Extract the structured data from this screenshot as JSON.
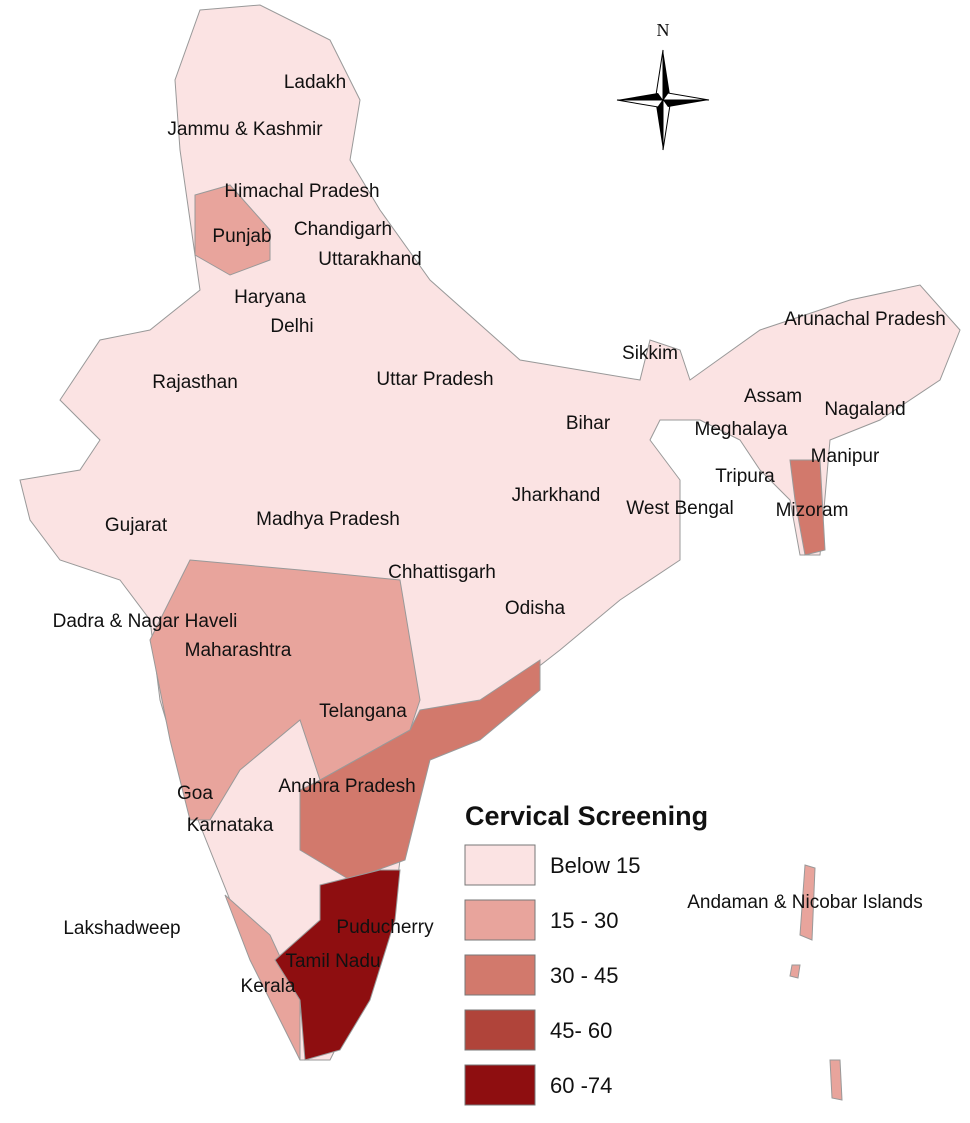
{
  "map": {
    "north_label": "N",
    "regions": [
      "Ladakh",
      "Jammu & Kashmir",
      "Himachal Pradesh",
      "Punjab",
      "Chandigarh",
      "Uttarakhand",
      "Haryana",
      "Delhi",
      "Rajasthan",
      "Uttar Pradesh",
      "Sikkim",
      "Arunachal Pradesh",
      "Assam",
      "Nagaland",
      "Meghalaya",
      "Bihar",
      "Manipur",
      "Tripura",
      "Mizoram",
      "Jharkhand",
      "West Bengal",
      "Gujarat",
      "Madhya Pradesh",
      "Chhattisgarh",
      "Odisha",
      "Dadra & Nagar Haveli",
      "Maharashtra",
      "Telangana",
      "Andhra Pradesh",
      "Goa",
      "Karnataka",
      "Lakshadweep",
      "Puducherry",
      "Tamil Nadu",
      "Kerala",
      "Andaman & Nicobar Islands"
    ],
    "legend": {
      "title": "Cervical Screening",
      "items": [
        {
          "label": "Below 15",
          "color": "#fbe3e3"
        },
        {
          "label": "15 - 30",
          "color": "#e8a49c"
        },
        {
          "label": "30 - 45",
          "color": "#d2796c"
        },
        {
          "label": "45- 60",
          "color": "#b0443a"
        },
        {
          "label": "60 -74",
          "color": "#8e0e10"
        }
      ]
    }
  }
}
